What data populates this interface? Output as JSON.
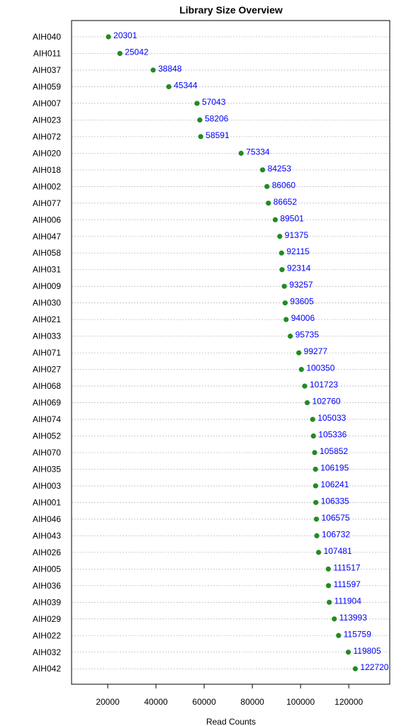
{
  "chart_data": {
    "type": "scatter",
    "title": "Library Size Overview",
    "xlabel": "Read Counts",
    "ylabel": "",
    "xlim": [
      5000,
      137000
    ],
    "xticks": [
      20000,
      40000,
      60000,
      80000,
      100000,
      120000
    ],
    "grid": "horizontal dotted",
    "point_color": "#228B22",
    "label_color": "#0000FF",
    "categories": [
      "AIH040",
      "AIH011",
      "AIH037",
      "AIH059",
      "AIH007",
      "AIH023",
      "AIH072",
      "AIH020",
      "AIH018",
      "AIH002",
      "AIH077",
      "AIH006",
      "AIH047",
      "AIH058",
      "AIH031",
      "AIH009",
      "AIH030",
      "AIH021",
      "AIH033",
      "AIH071",
      "AIH027",
      "AIH068",
      "AIH069",
      "AIH074",
      "AIH052",
      "AIH070",
      "AIH035",
      "AIH003",
      "AIH001",
      "AIH046",
      "AIH043",
      "AIH026",
      "AIH005",
      "AIH036",
      "AIH039",
      "AIH029",
      "AIH022",
      "AIH032",
      "AIH042"
    ],
    "values": [
      20301,
      25042,
      38848,
      45344,
      57043,
      58206,
      58591,
      75334,
      84253,
      86060,
      86652,
      89501,
      91375,
      92115,
      92314,
      93257,
      93605,
      94006,
      95735,
      99277,
      100350,
      101723,
      102760,
      105033,
      105336,
      105852,
      106195,
      106241,
      106335,
      106575,
      106732,
      107481,
      111517,
      111597,
      111904,
      113993,
      115759,
      119805,
      122720
    ]
  }
}
